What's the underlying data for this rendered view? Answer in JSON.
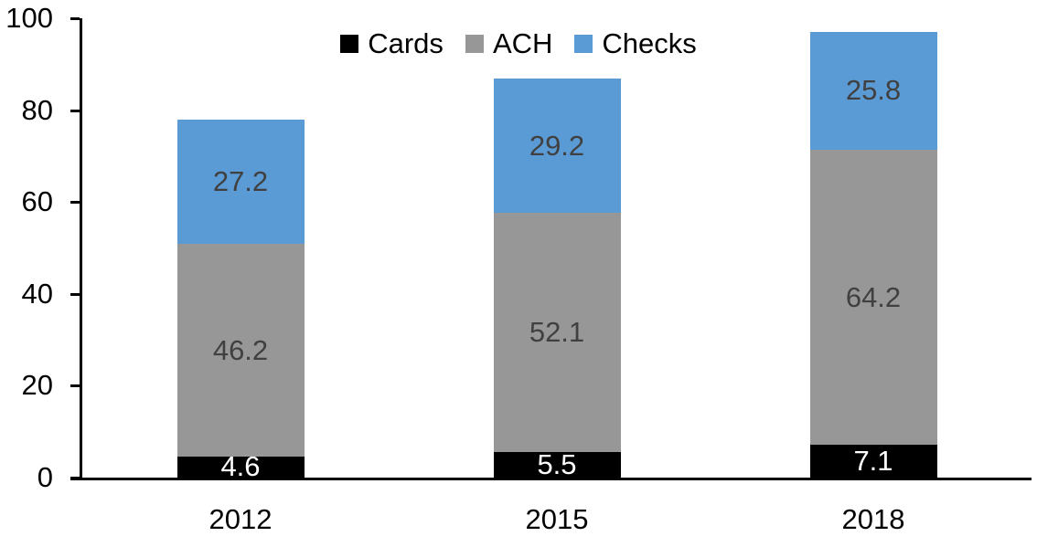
{
  "chart_data": {
    "type": "bar",
    "stacked": true,
    "title": "",
    "xlabel": "",
    "ylabel": "",
    "categories": [
      "2012",
      "2015",
      "2018"
    ],
    "series": [
      {
        "name": "Cards",
        "color": "#000000",
        "label_color": "#ffffff",
        "values": [
          4.6,
          5.5,
          7.1
        ]
      },
      {
        "name": "ACH",
        "color": "#979797",
        "label_color": "#404040",
        "values": [
          46.2,
          52.1,
          64.2
        ]
      },
      {
        "name": "Checks",
        "color": "#5B9BD5",
        "label_color": "#404040",
        "values": [
          27.2,
          29.2,
          25.8
        ]
      }
    ],
    "stack_totals": [
      78.0,
      86.8,
      97.1
    ],
    "y_ticks": [
      0,
      20,
      40,
      60,
      80,
      100
    ],
    "ylim": [
      0,
      100
    ],
    "grid": false,
    "legend_position": "top",
    "legend_labels": [
      "Cards",
      "ACH",
      "Checks"
    ],
    "axis_color": "#000000",
    "text_color": "#000000",
    "background_color": "#ffffff"
  }
}
